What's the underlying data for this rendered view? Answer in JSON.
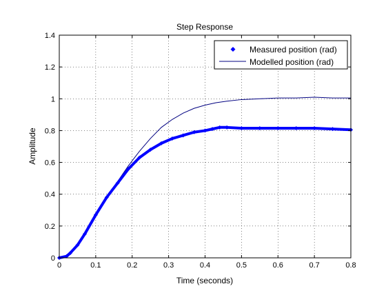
{
  "chart_data": {
    "type": "line",
    "title": "Step Response",
    "xlabel": "Time (seconds)",
    "ylabel": "Amplitude",
    "xlim": [
      0,
      0.8
    ],
    "ylim": [
      0,
      1.4
    ],
    "xticks": [
      0,
      0.1,
      0.2,
      0.3,
      0.4,
      0.5,
      0.6,
      0.7,
      0.8
    ],
    "xtick_labels": [
      "0",
      "0.1",
      "0.2",
      "0.3",
      "0.4",
      "0.5",
      "0.6",
      "0.7",
      "0.8"
    ],
    "yticks": [
      0,
      0.2,
      0.4,
      0.6,
      0.8,
      1,
      1.2,
      1.4
    ],
    "ytick_labels": [
      "0",
      "0.2",
      "0.4",
      "0.6",
      "0.8",
      "1",
      "1.2",
      "1.4"
    ],
    "grid": true,
    "legend_position": "top-right",
    "series": [
      {
        "name": "Measured position (rad)",
        "style": "markers",
        "color": "#0000ff",
        "x": [
          0,
          0.02,
          0.03,
          0.05,
          0.07,
          0.1,
          0.13,
          0.16,
          0.19,
          0.22,
          0.25,
          0.28,
          0.31,
          0.34,
          0.37,
          0.4,
          0.42,
          0.44,
          0.46,
          0.5,
          0.55,
          0.6,
          0.65,
          0.7,
          0.75,
          0.8
        ],
        "y": [
          0,
          0.01,
          0.03,
          0.08,
          0.15,
          0.27,
          0.38,
          0.47,
          0.56,
          0.63,
          0.68,
          0.72,
          0.75,
          0.77,
          0.79,
          0.8,
          0.81,
          0.82,
          0.82,
          0.815,
          0.815,
          0.815,
          0.815,
          0.815,
          0.81,
          0.805
        ]
      },
      {
        "name": "Modelled position (rad)",
        "style": "line",
        "color": "#000080",
        "x": [
          0,
          0.02,
          0.03,
          0.05,
          0.07,
          0.1,
          0.13,
          0.16,
          0.19,
          0.22,
          0.25,
          0.28,
          0.31,
          0.34,
          0.37,
          0.4,
          0.43,
          0.46,
          0.5,
          0.55,
          0.6,
          0.65,
          0.7,
          0.75,
          0.8
        ],
        "y": [
          0,
          0.01,
          0.03,
          0.08,
          0.15,
          0.27,
          0.38,
          0.48,
          0.58,
          0.67,
          0.75,
          0.82,
          0.87,
          0.91,
          0.94,
          0.96,
          0.975,
          0.985,
          0.995,
          1.0,
          1.005,
          1.005,
          1.01,
          1.005,
          1.005
        ]
      }
    ]
  }
}
